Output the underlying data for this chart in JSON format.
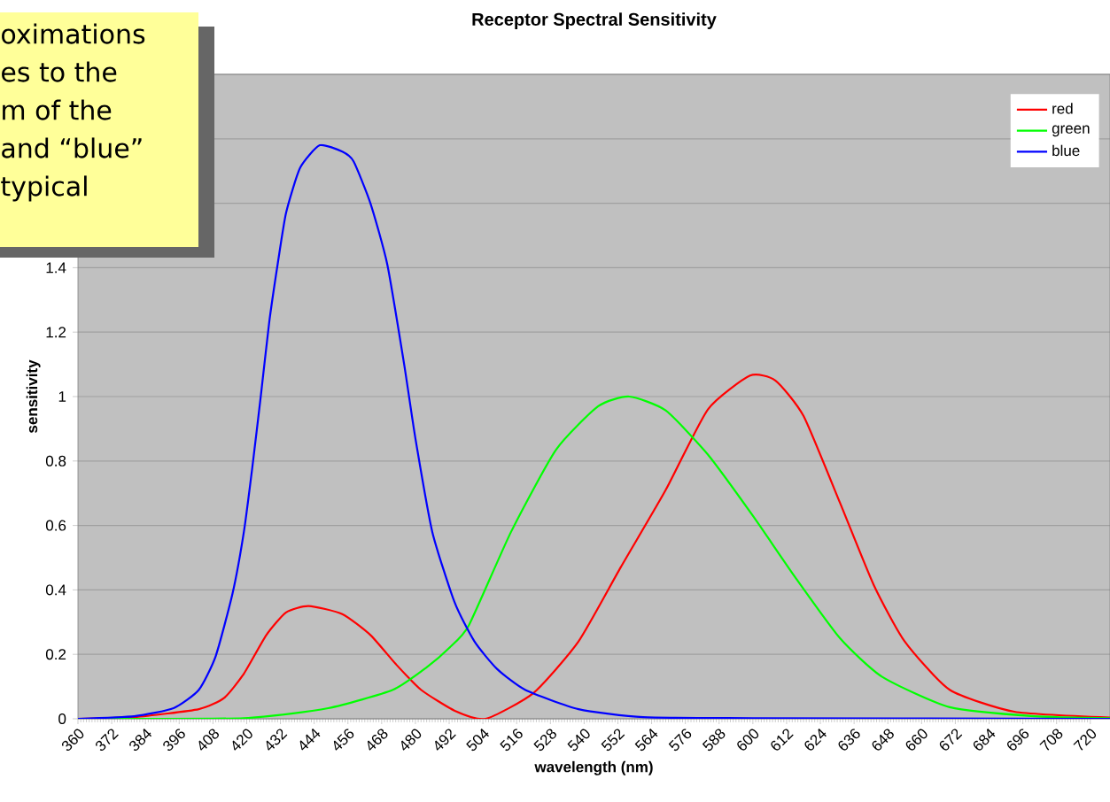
{
  "chart_data": {
    "type": "line",
    "title": "Receptor Spectral Sensitivity",
    "xlabel": "wavelength (nm)",
    "ylabel": "sensitivity",
    "series": [
      {
        "name": "red",
        "color": "#ff0000",
        "x": [
          360,
          380,
          403,
          412,
          419,
          427,
          434,
          442,
          454,
          464,
          473,
          482,
          494,
          505,
          522,
          538,
          553,
          569,
          584,
          599,
          608,
          618,
          631,
          643,
          654,
          670,
          693,
          727
        ],
        "values": [
          0,
          0.005,
          0.03,
          0.065,
          0.14,
          0.26,
          0.33,
          0.35,
          0.325,
          0.26,
          0.17,
          0.09,
          0.025,
          0,
          0.08,
          0.24,
          0.47,
          0.71,
          0.96,
          1.065,
          1.05,
          0.94,
          0.67,
          0.415,
          0.24,
          0.09,
          0.022,
          0.004
        ]
      },
      {
        "name": "green",
        "color": "#00ff00",
        "x": [
          360,
          419,
          449,
          472,
          484,
          492,
          499,
          514,
          530,
          545,
          556,
          569,
          584,
          600,
          615,
          631,
          646,
          670,
          700,
          727
        ],
        "values": [
          0,
          0.002,
          0.033,
          0.09,
          0.16,
          0.22,
          0.29,
          0.58,
          0.835,
          0.97,
          1.0,
          0.957,
          0.82,
          0.63,
          0.44,
          0.25,
          0.13,
          0.036,
          0.008,
          0.002
        ]
      },
      {
        "name": "blue",
        "color": "#0000ff",
        "x": [
          360,
          380,
          394,
          403,
          409,
          415,
          419,
          422,
          425,
          428,
          431,
          434,
          439,
          446,
          454,
          458,
          464,
          470,
          476,
          480,
          486,
          494,
          501,
          509,
          519,
          538,
          561,
          600,
          727
        ],
        "values": [
          0,
          0.008,
          0.033,
          0.09,
          0.195,
          0.39,
          0.58,
          0.78,
          1.0,
          1.23,
          1.41,
          1.57,
          1.71,
          1.78,
          1.76,
          1.73,
          1.6,
          1.41,
          1.1,
          0.87,
          0.58,
          0.36,
          0.24,
          0.155,
          0.09,
          0.03,
          0.005,
          0.002,
          0
        ]
      }
    ],
    "xlim": [
      360,
      727
    ],
    "ylim": [
      0,
      2
    ],
    "xticks": [
      360,
      372,
      384,
      396,
      408,
      420,
      432,
      444,
      456,
      468,
      480,
      492,
      504,
      516,
      528,
      540,
      552,
      564,
      576,
      588,
      600,
      612,
      624,
      636,
      648,
      660,
      672,
      684,
      696,
      708,
      720
    ],
    "yticks": [
      0,
      0.2,
      0.4,
      0.6,
      0.8,
      1,
      1.2,
      1.4,
      {
        "value": 1.6,
        "label": null
      },
      {
        "value": 1.8,
        "label": null
      },
      {
        "value": 2,
        "label": null
      }
    ],
    "grid": "y",
    "legend": "top right",
    "annotations": [
      "oximations",
      "es to the",
      "m of the",
      "and “blue”",
      "typical"
    ]
  }
}
